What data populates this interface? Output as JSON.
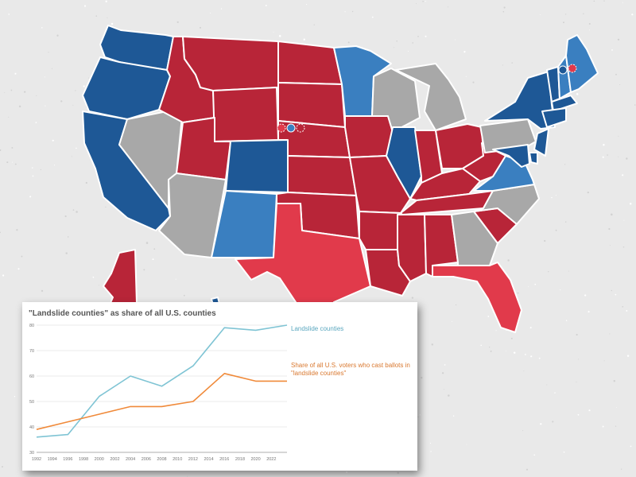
{
  "colors": {
    "solid_rep": "#b82538",
    "lean_rep": "#e13a4b",
    "solid_dem": "#1e5896",
    "lean_dem": "#3a7fc0",
    "tossup": "#a8a8a8",
    "line_landslide": "#7fc4d4",
    "line_voters": "#f08a3a"
  },
  "map": {
    "states": [
      {
        "name": "WA",
        "cat": "solid_dem"
      },
      {
        "name": "OR",
        "cat": "solid_dem"
      },
      {
        "name": "CA",
        "cat": "solid_dem"
      },
      {
        "name": "NV",
        "cat": "tossup"
      },
      {
        "name": "ID",
        "cat": "solid_rep"
      },
      {
        "name": "MT",
        "cat": "solid_rep"
      },
      {
        "name": "WY",
        "cat": "solid_rep"
      },
      {
        "name": "UT",
        "cat": "solid_rep"
      },
      {
        "name": "AZ",
        "cat": "tossup"
      },
      {
        "name": "CO",
        "cat": "solid_dem"
      },
      {
        "name": "NM",
        "cat": "lean_dem"
      },
      {
        "name": "ND",
        "cat": "solid_rep"
      },
      {
        "name": "SD",
        "cat": "solid_rep"
      },
      {
        "name": "NE",
        "cat": "solid_rep"
      },
      {
        "name": "KS",
        "cat": "solid_rep"
      },
      {
        "name": "OK",
        "cat": "solid_rep"
      },
      {
        "name": "TX",
        "cat": "lean_rep"
      },
      {
        "name": "MN",
        "cat": "lean_dem"
      },
      {
        "name": "IA",
        "cat": "solid_rep"
      },
      {
        "name": "MO",
        "cat": "solid_rep"
      },
      {
        "name": "AR",
        "cat": "solid_rep"
      },
      {
        "name": "LA",
        "cat": "solid_rep"
      },
      {
        "name": "WI",
        "cat": "tossup"
      },
      {
        "name": "IL",
        "cat": "solid_dem"
      },
      {
        "name": "MI",
        "cat": "tossup"
      },
      {
        "name": "IN",
        "cat": "solid_rep"
      },
      {
        "name": "OH",
        "cat": "solid_rep"
      },
      {
        "name": "KY",
        "cat": "solid_rep"
      },
      {
        "name": "TN",
        "cat": "solid_rep"
      },
      {
        "name": "MS",
        "cat": "solid_rep"
      },
      {
        "name": "AL",
        "cat": "solid_rep"
      },
      {
        "name": "GA",
        "cat": "tossup"
      },
      {
        "name": "FL",
        "cat": "lean_rep"
      },
      {
        "name": "SC",
        "cat": "solid_rep"
      },
      {
        "name": "NC",
        "cat": "tossup"
      },
      {
        "name": "VA",
        "cat": "lean_dem"
      },
      {
        "name": "WV",
        "cat": "solid_rep"
      },
      {
        "name": "PA",
        "cat": "tossup"
      },
      {
        "name": "NY",
        "cat": "solid_dem"
      },
      {
        "name": "VT",
        "cat": "solid_dem"
      },
      {
        "name": "NH",
        "cat": "lean_dem"
      },
      {
        "name": "ME",
        "cat": "lean_dem"
      },
      {
        "name": "MA",
        "cat": "solid_dem"
      },
      {
        "name": "CT",
        "cat": "solid_dem"
      },
      {
        "name": "NJ",
        "cat": "solid_dem"
      },
      {
        "name": "DE",
        "cat": "solid_dem"
      },
      {
        "name": "MD",
        "cat": "solid_dem"
      },
      {
        "name": "AK",
        "cat": "solid_rep"
      },
      {
        "name": "HI",
        "cat": "solid_dem"
      }
    ]
  },
  "chart_data": {
    "type": "line",
    "title": "\"Landslide counties\" as share of all U.S. counties",
    "x": [
      1992,
      1996,
      2000,
      2004,
      2008,
      2012,
      2016,
      2020,
      2024
    ],
    "x_ticks": [
      "1992",
      "1994",
      "1996",
      "1998",
      "2000",
      "2002",
      "2004",
      "2006",
      "2008",
      "2010",
      "2012",
      "2014",
      "2016",
      "2018",
      "2020",
      "2022"
    ],
    "y_ticks": [
      30,
      40,
      50,
      60,
      70,
      80
    ],
    "ylim": [
      30,
      80
    ],
    "xlim": [
      1992,
      2024
    ],
    "grid": true,
    "series": [
      {
        "name": "Landslide counties",
        "color": "#7fc4d4",
        "values": [
          36,
          37,
          52,
          60,
          56,
          64,
          79,
          78,
          80
        ]
      },
      {
        "name": "Share of all U.S. voters who cast ballots in \"landslide counties\"",
        "color": "#f08a3a",
        "values": [
          39,
          42,
          45,
          48,
          48,
          50,
          61,
          58,
          58
        ]
      }
    ]
  }
}
